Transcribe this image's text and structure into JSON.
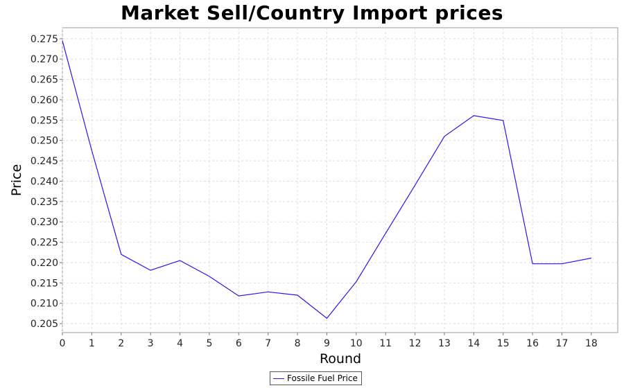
{
  "chart_data": {
    "type": "line",
    "title": "Market Sell/Country Import prices",
    "xlabel": "Round",
    "ylabel": "Price",
    "xlim": [
      0,
      18.9
    ],
    "ylim": [
      0.2028,
      0.2777
    ],
    "x_ticks": [
      0,
      1,
      2,
      3,
      4,
      5,
      6,
      7,
      8,
      9,
      10,
      11,
      12,
      13,
      14,
      15,
      16,
      17,
      18
    ],
    "y_ticks": [
      0.205,
      0.21,
      0.215,
      0.22,
      0.225,
      0.23,
      0.235,
      0.24,
      0.245,
      0.25,
      0.255,
      0.26,
      0.265,
      0.27,
      0.275
    ],
    "y_tick_labels": [
      "0.205",
      "0.210",
      "0.215",
      "0.220",
      "0.225",
      "0.230",
      "0.235",
      "0.240",
      "0.245",
      "0.250",
      "0.255",
      "0.260",
      "0.265",
      "0.270",
      "0.275"
    ],
    "grid": true,
    "legend_position": "bottom-center",
    "series": [
      {
        "name": "Fossile Fuel Price",
        "color": "#3311ee",
        "x": [
          0,
          1,
          2,
          3,
          4,
          5,
          6,
          7,
          8,
          9,
          10,
          11,
          12,
          13,
          14,
          15,
          16,
          17,
          18
        ],
        "y": [
          0.2745,
          0.2475,
          0.222,
          0.2181,
          0.2205,
          0.2166,
          0.2118,
          0.2128,
          0.212,
          0.2063,
          0.2153,
          0.2272,
          0.239,
          0.251,
          0.2561,
          0.2549,
          0.2197,
          0.2197,
          0.2211
        ]
      }
    ]
  }
}
